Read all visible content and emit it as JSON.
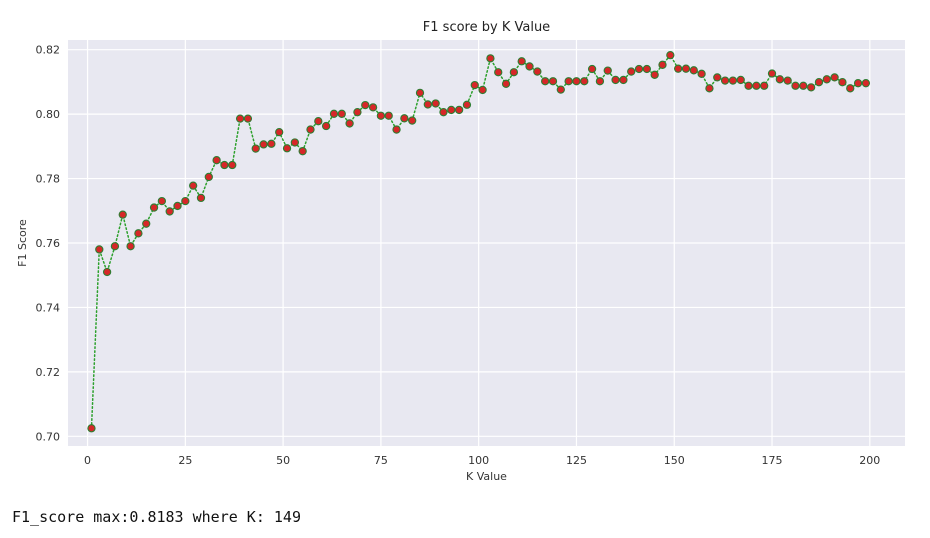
{
  "output_text": "F1_score max:0.8183 where K: 149",
  "colors": {
    "plot_bg": "#e8e8f1",
    "grid": "#ffffff",
    "line": "#2ca02c",
    "marker_face": "#d62728",
    "marker_edge": "#2e7d32"
  },
  "chart_data": {
    "type": "scatter",
    "title": "F1 score by K Value",
    "xlabel": "K Value",
    "ylabel": "F1 Score",
    "xlim": [
      -5,
      209
    ],
    "ylim": [
      0.697,
      0.823
    ],
    "xticks": [
      0,
      25,
      50,
      75,
      100,
      125,
      150,
      175,
      200
    ],
    "xtick_labels": [
      "0",
      "25",
      "50",
      "75",
      "100",
      "125",
      "150",
      "175",
      "200"
    ],
    "yticks": [
      0.7,
      0.72,
      0.74,
      0.76,
      0.78,
      0.8,
      0.82
    ],
    "ytick_labels": [
      "0.70",
      "0.72",
      "0.74",
      "0.76",
      "0.78",
      "0.80",
      "0.82"
    ],
    "grid": true,
    "line_style": "dotted",
    "marker": "circle",
    "series": [
      {
        "x": [
          1,
          3,
          5,
          7,
          9,
          11,
          13,
          15,
          17,
          19,
          21,
          23,
          25,
          27,
          29,
          31,
          33,
          35,
          37,
          39,
          41,
          43,
          45,
          47,
          49,
          51,
          53,
          55,
          57,
          59,
          61,
          63,
          65,
          67,
          69,
          71,
          73,
          75,
          77,
          79,
          81,
          83,
          85,
          87,
          89,
          91,
          93,
          95,
          97,
          99,
          101,
          103,
          105,
          107,
          109,
          111,
          113,
          115,
          117,
          119,
          121,
          123,
          125,
          127,
          129,
          131,
          133,
          135,
          137,
          139,
          141,
          143,
          145,
          147,
          149,
          151,
          153,
          155,
          157,
          159,
          161,
          163,
          165,
          167,
          169,
          171,
          173,
          175,
          177,
          179,
          181,
          183,
          185,
          187,
          189,
          191,
          193,
          195,
          197,
          199
        ],
        "values": [
          0.7025,
          0.758,
          0.751,
          0.759,
          0.7688,
          0.759,
          0.763,
          0.766,
          0.771,
          0.773,
          0.7698,
          0.7715,
          0.773,
          0.7778,
          0.774,
          0.7805,
          0.7857,
          0.7842,
          0.7842,
          0.7986,
          0.7986,
          0.7893,
          0.7906,
          0.7908,
          0.7944,
          0.7894,
          0.7912,
          0.7885,
          0.7952,
          0.7978,
          0.7963,
          0.8001,
          0.8001,
          0.7971,
          0.8006,
          0.8028,
          0.8021,
          0.7995,
          0.7995,
          0.7952,
          0.7987,
          0.798,
          0.8066,
          0.803,
          0.8033,
          0.8006,
          0.8013,
          0.8013,
          0.8029,
          0.809,
          0.8075,
          0.8173,
          0.813,
          0.8094,
          0.813,
          0.8164,
          0.8148,
          0.8132,
          0.8102,
          0.8102,
          0.8076,
          0.8102,
          0.8102,
          0.8102,
          0.814,
          0.8102,
          0.8135,
          0.8106,
          0.8106,
          0.8132,
          0.814,
          0.814,
          0.8122,
          0.8153,
          0.8183,
          0.8141,
          0.8141,
          0.8136,
          0.8125,
          0.808,
          0.8114,
          0.8104,
          0.8104,
          0.8106,
          0.8088,
          0.8088,
          0.8088,
          0.8126,
          0.8108,
          0.8104,
          0.8088,
          0.8088,
          0.8083,
          0.8099,
          0.8108,
          0.8114,
          0.8099,
          0.808,
          0.8096,
          0.8096
        ]
      }
    ]
  }
}
